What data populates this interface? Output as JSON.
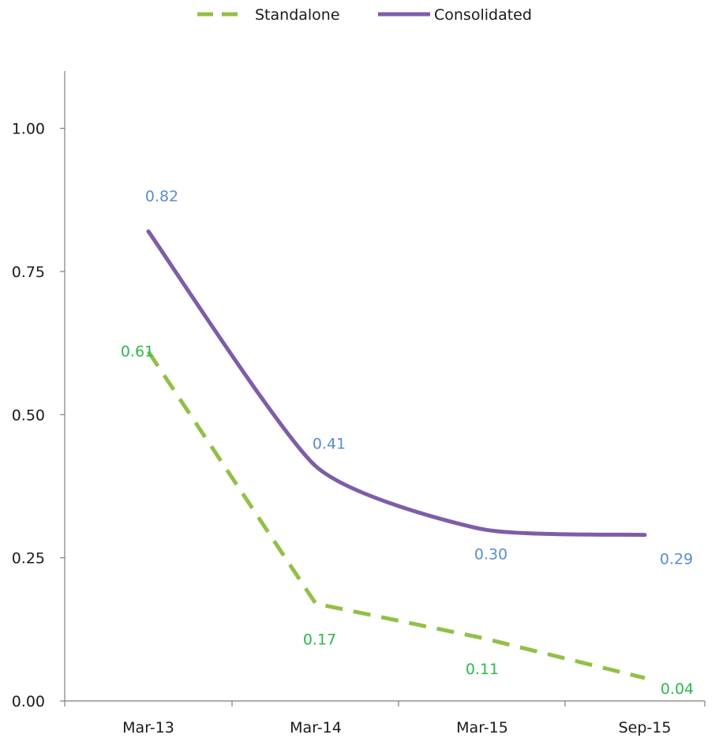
{
  "chart_data": {
    "type": "line",
    "categories": [
      "Mar-13",
      "Mar-14",
      "Mar-15",
      "Sep-15"
    ],
    "series": [
      {
        "name": "Standalone",
        "values": [
          0.61,
          0.17,
          0.11,
          0.04
        ],
        "labels": [
          "0.61",
          "0.17",
          "0.11",
          "0.04"
        ],
        "color": "#92c047",
        "label_color": "#2db84b",
        "line_style": "dashed",
        "smooth": false
      },
      {
        "name": "Consolidated",
        "values": [
          0.82,
          0.41,
          0.3,
          0.29
        ],
        "labels": [
          "0.82",
          "0.41",
          "0.30",
          "0.29"
        ],
        "color": "#7f5ca8",
        "label_color": "#5b8ccc",
        "line_style": "solid",
        "smooth": true
      }
    ],
    "y_ticks": [
      "0.00",
      "0.25",
      "0.50",
      "0.75",
      "1.00"
    ],
    "ylim": [
      0,
      1.1
    ],
    "grid": false,
    "legend_position": "top-center"
  }
}
